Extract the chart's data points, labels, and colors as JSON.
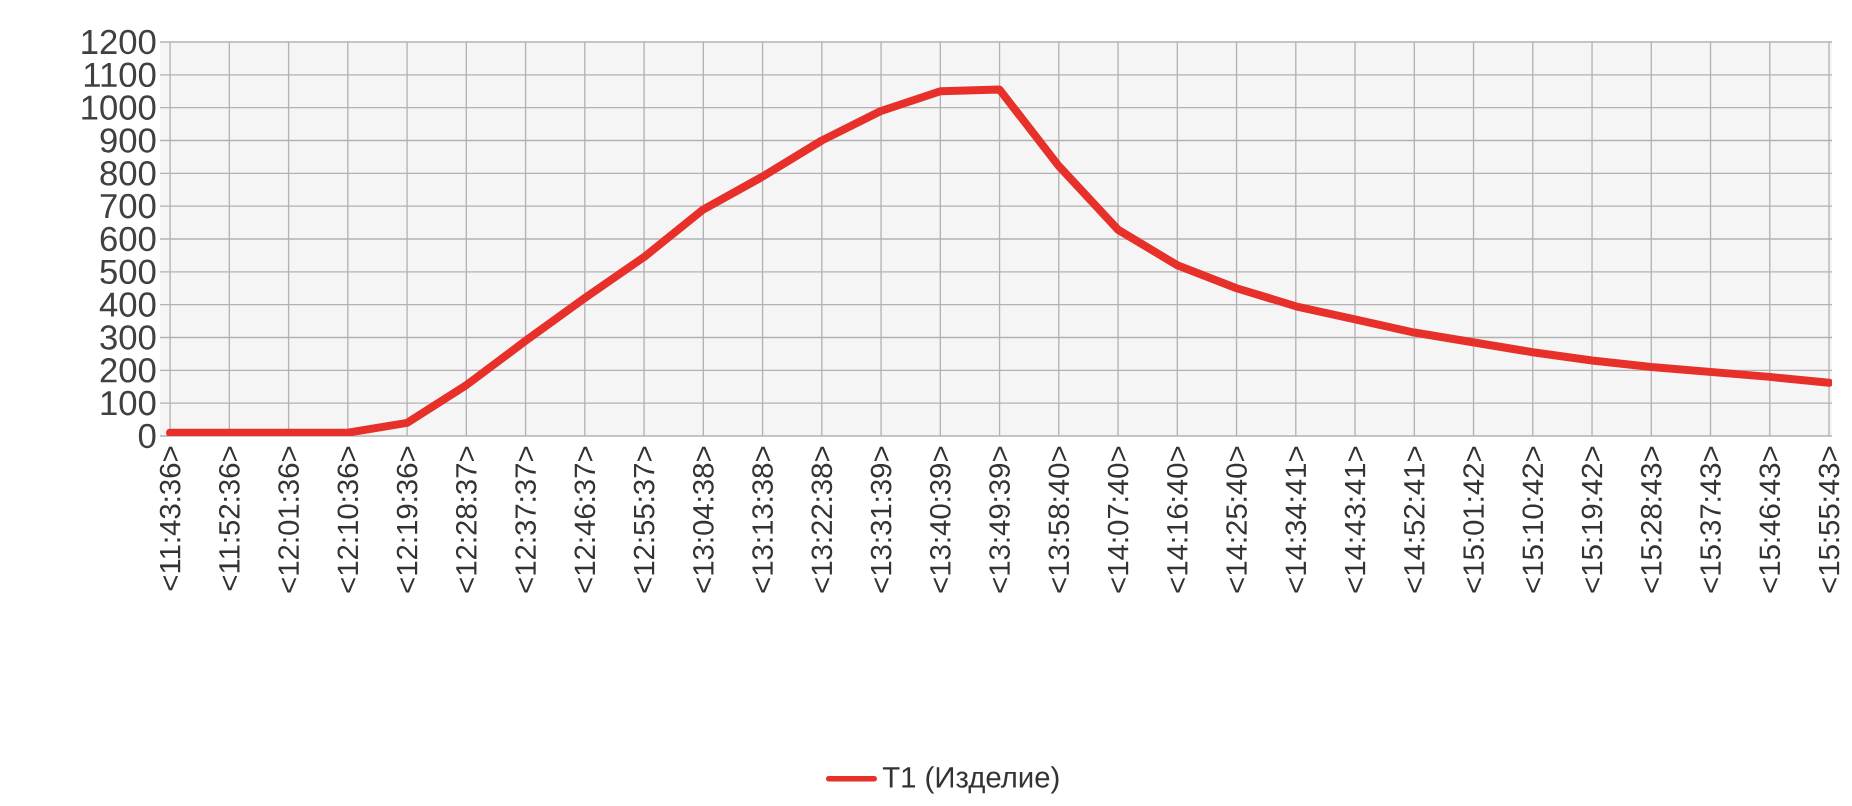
{
  "chart_data": {
    "type": "line",
    "ylim": [
      0,
      1200
    ],
    "categories": [
      "<11:43:36>",
      "<11:52:36>",
      "<12:01:36>",
      "<12:10:36>",
      "<12:19:36>",
      "<12:28:37>",
      "<12:37:37>",
      "<12:46:37>",
      "<12:55:37>",
      "<13:04:38>",
      "<13:13:38>",
      "<13:22:38>",
      "<13:31:39>",
      "<13:40:39>",
      "<13:49:39>",
      "<13:58:40>",
      "<14:07:40>",
      "<14:16:40>",
      "<14:25:40>",
      "<14:34:41>",
      "<14:43:41>",
      "<14:52:41>",
      "<15:01:42>",
      "<15:10:42>",
      "<15:19:42>",
      "<15:28:43>",
      "<15:37:43>",
      "<15:46:43>",
      "<15:55:43>"
    ],
    "yticks": [
      0,
      100,
      200,
      300,
      400,
      500,
      600,
      700,
      800,
      900,
      1000,
      1100,
      1200
    ],
    "grid": true,
    "legend": "bottom",
    "marker": "none",
    "line_style": "solid",
    "series": [
      {
        "name": "T1 (Изделие)",
        "color": "#e8302a",
        "values": [
          10,
          10,
          10,
          10,
          40,
          155,
          290,
          420,
          545,
          690,
          790,
          900,
          990,
          1050,
          1055,
          822,
          628,
          520,
          450,
          395,
          355,
          315,
          285,
          255,
          230,
          210,
          195,
          180,
          162
        ]
      }
    ]
  }
}
